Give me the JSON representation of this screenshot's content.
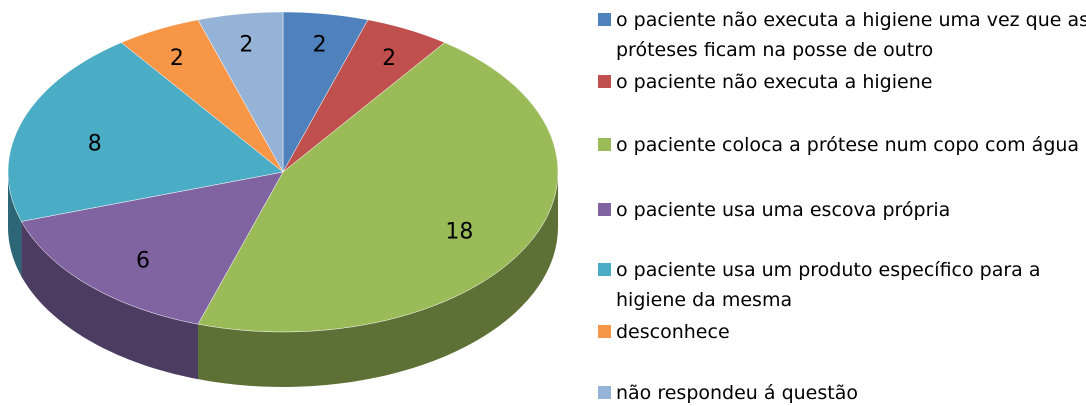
{
  "chart_data": {
    "type": "pie3d",
    "categories": [
      "o paciente não executa a higiene uma vez que as próteses ficam na posse de outro",
      "o paciente não executa a higiene",
      "o paciente coloca a prótese num copo com água",
      "o paciente usa uma escova própria",
      "o paciente usa um produto específico para a higiene da mesma",
      "desconhece",
      "não respondeu á questão"
    ],
    "values": [
      2,
      2,
      18,
      6,
      8,
      2,
      2
    ],
    "colors": [
      "#4f81bd",
      "#c0504d",
      "#9bbb59",
      "#8064a2",
      "#4bacc6",
      "#f79646",
      "#95b3d7"
    ],
    "legend": "right"
  }
}
